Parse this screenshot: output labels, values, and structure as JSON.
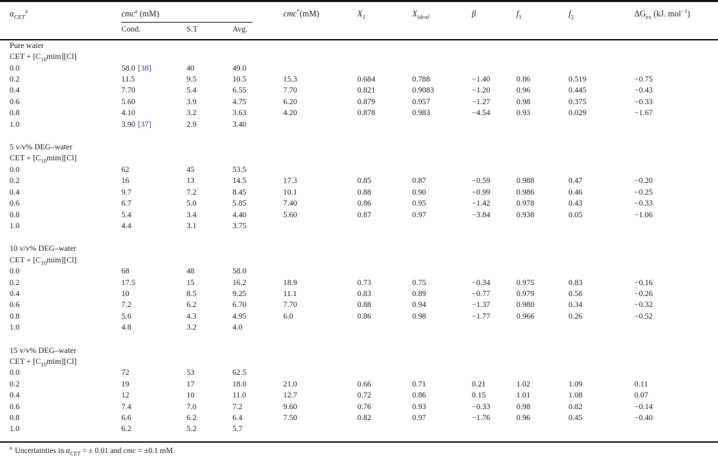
{
  "colors": {
    "text": "#212121",
    "citation_blue": "#2f3f96",
    "rule": "#161616",
    "background": "#ffffff"
  },
  "header": {
    "alpha": {
      "base": "α",
      "sub": "CET",
      "sup": "a"
    },
    "cmc_group": {
      "base": "cmc",
      "sup": "a",
      "unit": " (mM)"
    },
    "sub_cols": [
      "Cond.",
      "S.T",
      "Avg."
    ],
    "cmc_star": {
      "base": "cmc",
      "sup": "*",
      "unit": "(mM)"
    },
    "x1": {
      "base": "X",
      "sub": "1"
    },
    "xideal": {
      "base": "X",
      "sub": "ideal"
    },
    "beta": "β",
    "f1": {
      "base": "f",
      "sub": "1"
    },
    "f2": {
      "base": "f",
      "sub": "2"
    },
    "dgex": {
      "base": "ΔG",
      "sub": "ex",
      "unit_pre": " (kJ. mol",
      "unit_sup": "−1",
      "unit_post": ")"
    }
  },
  "sections": [
    {
      "solvent": "Pure water",
      "system": {
        "pre": "CET + [C",
        "sub": "10",
        "post": "mim][Cl]"
      },
      "rows": [
        {
          "alpha": "0.0",
          "cond": "58.0",
          "cond_ref": "[38]",
          "st": "40",
          "avg": "49.0"
        },
        {
          "alpha": "0.2",
          "cond": "11.5",
          "st": "9.5",
          "avg": "10.5",
          "cmc_star": "15.3",
          "x1": "0.684",
          "x_ideal": "0.788",
          "beta": "−1.40",
          "f1": "0.86",
          "f2": "0.519",
          "dg_ex": "−0.75"
        },
        {
          "alpha": "0.4",
          "cond": "7.70",
          "st": "5.4",
          "avg": "6.55",
          "cmc_star": "7.70",
          "x1": "0.821",
          "x_ideal": "0.9083",
          "beta": "−1.20",
          "f1": "0.96",
          "f2": "0.445",
          "dg_ex": "−0.43"
        },
        {
          "alpha": "0.6",
          "cond": "5.60",
          "st": "3.9",
          "avg": "4.75",
          "cmc_star": "6.20",
          "x1": "0.879",
          "x_ideal": "0.957",
          "beta": "−1.27",
          "f1": "0.98",
          "f2": "0.375",
          "dg_ex": "−0.33"
        },
        {
          "alpha": "0.8",
          "cond": "4.10",
          "st": "3.2",
          "avg": "3.63",
          "cmc_star": "4.20",
          "x1": "0.878",
          "x_ideal": "0.983",
          "beta": "−4.54",
          "f1": "0.93",
          "f2": "0.029",
          "dg_ex": "−1.67"
        },
        {
          "alpha": "1.0",
          "cond": "3.90",
          "cond_ref": "[37]",
          "st": "2.9",
          "avg": "3.40"
        }
      ]
    },
    {
      "solvent": "5 v/v% DEG–water",
      "system": {
        "pre": "CET + [C",
        "sub": "10",
        "post": "mim][Cl]"
      },
      "rows": [
        {
          "alpha": "0.0",
          "cond": "62",
          "st": "45",
          "avg": "53.5"
        },
        {
          "alpha": "0.2",
          "cond": "16",
          "st": "13",
          "avg": "14.5",
          "cmc_star": "17.3",
          "x1": "0.85",
          "x_ideal": "0.87",
          "beta": "−0.59",
          "f1": "0.988",
          "f2": "0.47",
          "dg_ex": "−0.20"
        },
        {
          "alpha": "0.4",
          "cond": "9.7",
          "st": "7.2",
          "avg": "8.45",
          "cmc_star": "10.1",
          "x1": "0.88",
          "x_ideal": "0.90",
          "beta": "−0.99",
          "f1": "0.986",
          "f2": "0.46",
          "dg_ex": "−0.25"
        },
        {
          "alpha": "0.6",
          "cond": "6.7",
          "st": "5.0",
          "avg": "5.85",
          "cmc_star": "7.40",
          "x1": "0.86",
          "x_ideal": "0.95",
          "beta": "−1.42",
          "f1": "0.978",
          "f2": "0.43",
          "dg_ex": "−0.33"
        },
        {
          "alpha": "0.8",
          "cond": "5.4",
          "st": "3.4",
          "avg": "4.40",
          "cmc_star": "5.60",
          "x1": "0.87",
          "x_ideal": "0.97",
          "beta": "−3.84",
          "f1": "0.938",
          "f2": "0.05",
          "dg_ex": "−1.06"
        },
        {
          "alpha": "1.0",
          "cond": "4.4",
          "st": "3.1",
          "avg": "3.75"
        }
      ]
    },
    {
      "solvent": "10 v/v% DEG–water",
      "system": {
        "pre": "CET + [C",
        "sub": "10",
        "post": "mim][Cl]"
      },
      "rows": [
        {
          "alpha": "0.0",
          "cond": "68",
          "st": "48",
          "avg": "58.0"
        },
        {
          "alpha": "0.2",
          "cond": "17.5",
          "st": "15",
          "avg": "16.2",
          "cmc_star": "18.9",
          "x1": "0.73",
          "x_ideal": "0.75",
          "beta": "−0.34",
          "f1": "0.975",
          "f2": "0.83",
          "dg_ex": "−0.16"
        },
        {
          "alpha": "0.4",
          "cond": "10",
          "st": "8.5",
          "avg": "9.25",
          "cmc_star": "11.1",
          "x1": "0.83",
          "x_ideal": "0.89",
          "beta": "−0.77",
          "f1": "0.979",
          "f2": "0.58",
          "dg_ex": "−0.26"
        },
        {
          "alpha": "0.6",
          "cond": "7.2",
          "st": "6.2",
          "avg": "6.70",
          "cmc_star": "7.70",
          "x1": "0.88",
          "x_ideal": "0.94",
          "beta": "−1.37",
          "f1": "0.980",
          "f2": "0.34",
          "dg_ex": "−0.32"
        },
        {
          "alpha": "0.8",
          "cond": "5.6",
          "st": "4.3",
          "avg": "4.95",
          "cmc_star": "6.0",
          "x1": "0.86",
          "x_ideal": "0.98",
          "beta": "−1.77",
          "f1": "0.966",
          "f2": "0.26",
          "dg_ex": "−0.52"
        },
        {
          "alpha": "1.0",
          "cond": "4.8",
          "st": "3.2",
          "avg": "4.0"
        }
      ]
    },
    {
      "solvent": "15 v/v% DEG–water",
      "system": {
        "pre": "CET + [C",
        "sub": "10",
        "post": "mim][Cl]"
      },
      "rows": [
        {
          "alpha": "0.0",
          "cond": "72",
          "st": "53",
          "avg": "62.5"
        },
        {
          "alpha": "0.2",
          "cond": "19",
          "st": "17",
          "avg": "18.0",
          "cmc_star": "21.0",
          "x1": "0.66",
          "x_ideal": "0.71",
          "beta": "0.21",
          "f1": "1.02",
          "f2": "1.09",
          "dg_ex": "0.11"
        },
        {
          "alpha": "0.4",
          "cond": "12",
          "st": "10",
          "avg": "11.0",
          "cmc_star": "12.7",
          "x1": "0.72",
          "x_ideal": "0.86",
          "beta": "0.15",
          "f1": "1.01",
          "f2": "1.08",
          "dg_ex": "0.07"
        },
        {
          "alpha": "0.6",
          "cond": "7.4",
          "st": "7.0",
          "avg": "7.2",
          "cmc_star": "9.60",
          "x1": "0.76",
          "x_ideal": "0.93",
          "beta": "−0.33",
          "f1": "0.98",
          "f2": "0.82",
          "dg_ex": "−0.14"
        },
        {
          "alpha": "0.8",
          "cond": "6.6",
          "st": "6.2",
          "avg": "6.4",
          "cmc_star": "7.50",
          "x1": "0.82",
          "x_ideal": "0.97",
          "beta": "−1.76",
          "f1": "0.96",
          "f2": "0.45",
          "dg_ex": "−0.40"
        },
        {
          "alpha": "1.0",
          "cond": "6.2",
          "st": "5.2",
          "avg": "5.7"
        }
      ]
    }
  ],
  "footnote": {
    "marker": "a",
    "lead": "Uncertainties in ",
    "alpha": "α",
    "alpha_sub": "CET",
    "mid": " = ± 0.01 and ",
    "cmc": "cmc",
    "tail": " = ±0.1 mM."
  }
}
